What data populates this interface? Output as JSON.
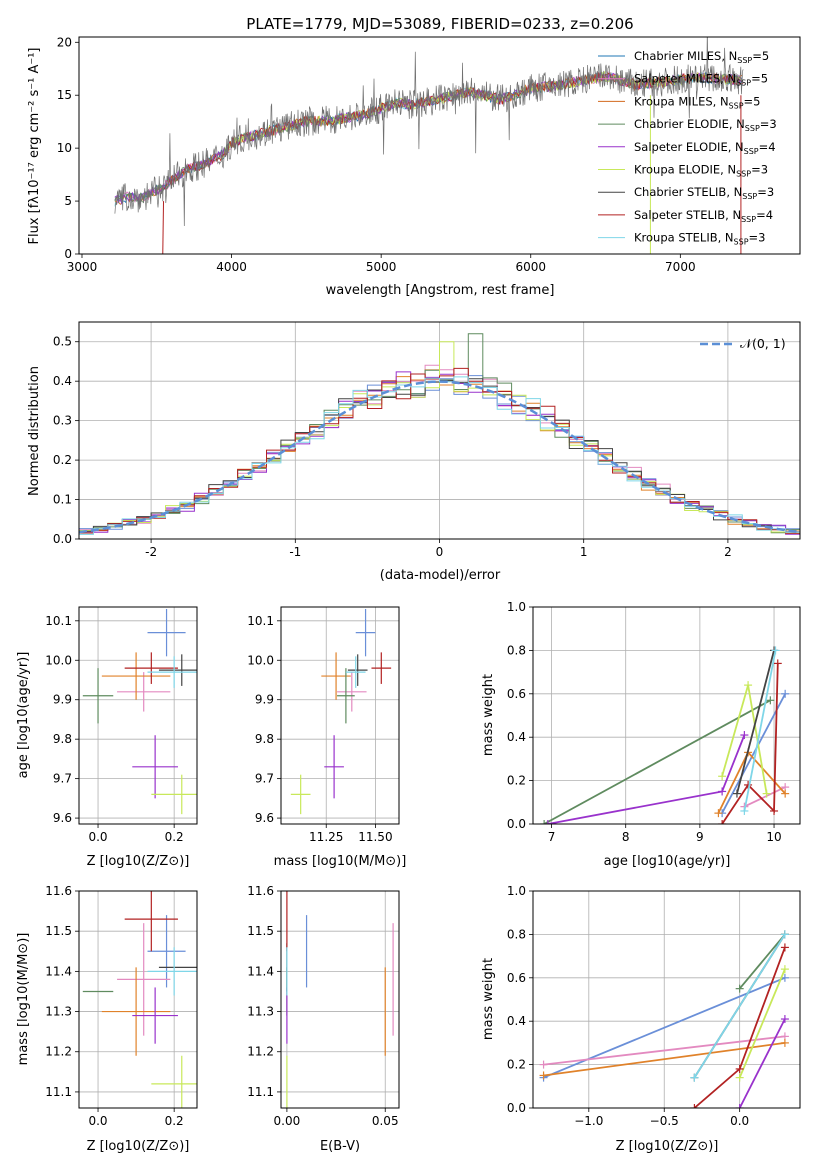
{
  "chart_data": [
    {
      "id": "spectrum",
      "type": "line",
      "title": "PLATE=1779, MJD=53089, FIBERID=0233, z=0.206",
      "xlabel": "wavelength [Angstrom, rest frame]",
      "ylabel": "Flux [fλ10⁻¹⁷ erg cm⁻² s⁻¹ A⁻¹]",
      "xlim": [
        2980,
        7800
      ],
      "ylim": [
        0,
        20.5
      ],
      "xticks": [
        3000,
        4000,
        5000,
        6000,
        7000
      ],
      "yticks": [
        0,
        5,
        10,
        15,
        20
      ],
      "legend_position": "top-right",
      "series": [
        {
          "name": "Chabrier MILES, NSSP=5",
          "color": "#1f77b4"
        },
        {
          "name": "Salpeter MILES, NSSP=5",
          "color": "#e377c2"
        },
        {
          "name": "Kroupa MILES, NSSP=5",
          "color": "#d2691e"
        },
        {
          "name": "Chabrier ELODIE, NSSP=3",
          "color": "#5f8b5f"
        },
        {
          "name": "Salpeter ELODIE, NSSP=4",
          "color": "#9932cc"
        },
        {
          "name": "Kroupa ELODIE, NSSP=3",
          "color": "#c8e85a"
        },
        {
          "name": "Chabrier STELIB, NSSP=3",
          "color": "#444444"
        },
        {
          "name": "Salpeter STELIB, NSSP=4",
          "color": "#b22222"
        },
        {
          "name": "Kroupa STELIB, NSSP=3",
          "color": "#7fd6e8"
        }
      ],
      "continuum": [
        [
          3220,
          5.0
        ],
        [
          3300,
          5.4
        ],
        [
          3400,
          5.3
        ],
        [
          3550,
          6.4
        ],
        [
          3700,
          8.0
        ],
        [
          3850,
          8.7
        ],
        [
          3950,
          9.5
        ],
        [
          4000,
          10.5
        ],
        [
          4100,
          11.0
        ],
        [
          4300,
          11.8
        ],
        [
          4500,
          12.5
        ],
        [
          4700,
          12.7
        ],
        [
          4900,
          13.2
        ],
        [
          5100,
          14.3
        ],
        [
          5200,
          14.1
        ],
        [
          5400,
          14.7
        ],
        [
          5600,
          15.3
        ],
        [
          5800,
          14.6
        ],
        [
          6000,
          15.6
        ],
        [
          6200,
          16.0
        ],
        [
          6500,
          16.8
        ],
        [
          6700,
          16.0
        ],
        [
          6900,
          16.3
        ],
        [
          7100,
          16.7
        ],
        [
          7400,
          16.4
        ]
      ]
    },
    {
      "id": "residuals",
      "type": "histogram",
      "xlabel": "(data-model)/error",
      "ylabel": "Normed distribution",
      "xlim": [
        -2.5,
        2.5
      ],
      "ylim": [
        0,
        0.55
      ],
      "xticks": [
        -2,
        -1,
        0,
        1,
        2
      ],
      "yticks": [
        0.0,
        0.1,
        0.2,
        0.3,
        0.4,
        0.5
      ],
      "grid": true,
      "legend": "𝒩(0, 1)",
      "legend_position": "top-right",
      "bin_width": 0.1
    },
    {
      "id": "age-vs-Z",
      "type": "scatter",
      "xlabel": "Z [log10(Z/Z⊙)]",
      "ylabel": "age [log10(age/yr)]",
      "xlim": [
        -0.05,
        0.26
      ],
      "ylim": [
        9.585,
        10.135
      ],
      "xticks": [
        0.0,
        0.2
      ],
      "yticks": [
        9.6,
        9.7,
        9.8,
        9.9,
        10.0,
        10.1
      ]
    },
    {
      "id": "age-vs-mass",
      "type": "scatter",
      "xlabel": "mass [log10(M/M⊙)]",
      "xlim": [
        11.02,
        11.62
      ],
      "ylim": [
        9.585,
        10.135
      ],
      "xticks": [
        11.25,
        11.5
      ],
      "xticklabels": [
        "11.25",
        "11.50"
      ],
      "yticks": [
        9.6,
        9.7,
        9.8,
        9.9,
        10.0,
        10.1
      ]
    },
    {
      "id": "weight-vs-age",
      "type": "line",
      "xlabel": "age [log10(age/yr)]",
      "ylabel": "mass weight",
      "xlim": [
        6.75,
        10.35
      ],
      "ylim": [
        0,
        1
      ],
      "xticks": [
        7,
        8,
        9,
        10
      ],
      "yticks": [
        0.0,
        0.2,
        0.4,
        0.6,
        0.8,
        1.0
      ]
    },
    {
      "id": "mass-vs-Z",
      "type": "scatter",
      "xlabel": "Z [log10(Z/Z⊙)]",
      "ylabel": "mass [log10(M/M⊙)]",
      "xlim": [
        -0.05,
        0.26
      ],
      "ylim": [
        11.06,
        11.6
      ],
      "xticks": [
        0.0,
        0.2
      ],
      "yticks": [
        11.1,
        11.2,
        11.3,
        11.4,
        11.5,
        11.6
      ]
    },
    {
      "id": "mass-vs-ebv",
      "type": "scatter",
      "xlabel": "E(B-V)",
      "xlim": [
        -0.003,
        0.057
      ],
      "ylim": [
        11.06,
        11.6
      ],
      "xticks": [
        0.0,
        0.05
      ],
      "xticklabels": [
        "0.00",
        "0.05"
      ],
      "yticks": [
        11.1,
        11.2,
        11.3,
        11.4,
        11.5,
        11.6
      ]
    },
    {
      "id": "weight-vs-Z",
      "type": "line",
      "xlabel": "Z [log10(Z/Z⊙)]",
      "ylabel": "mass weight",
      "xlim": [
        -1.37,
        0.4
      ],
      "ylim": [
        0,
        1
      ],
      "xticks": [
        -1.0,
        -0.5,
        0.0
      ],
      "xticklabels": [
        "−1.0",
        "−0.5",
        "0.0"
      ],
      "yticks": [
        0.0,
        0.2,
        0.4,
        0.6,
        0.8,
        1.0
      ]
    }
  ],
  "models": [
    {
      "name": "Chabrier MILES",
      "color": "#6a8fd8",
      "Z": [
        0.18,
        0.1
      ],
      "age": [
        10.07,
        0.06
      ],
      "mass": [
        11.45,
        0.1
      ],
      "ebv": 0.01,
      "m_err": 0.09,
      "sfh_age": [
        [
          9.3,
          0.05
        ],
        [
          10.15,
          0.6
        ]
      ],
      "sfh_Z": [
        [
          -1.3,
          0.14
        ],
        [
          0.3,
          0.6
        ]
      ]
    },
    {
      "name": "Salpeter MILES",
      "color": "#e38ac0",
      "Z": [
        0.12,
        0.14
      ],
      "age": [
        9.92,
        0.05
      ],
      "mass": [
        11.38,
        0.15
      ],
      "ebv": 0.054,
      "m_err": 0.14,
      "sfh_age": [
        [
          9.6,
          0.08
        ],
        [
          10.15,
          0.17
        ]
      ],
      "sfh_Z": [
        [
          -1.3,
          0.2
        ],
        [
          0.3,
          0.33
        ]
      ]
    },
    {
      "name": "Kroupa MILES",
      "color": "#e0822a",
      "Z": [
        0.1,
        0.18
      ],
      "age": [
        9.96,
        0.06
      ],
      "mass": [
        11.3,
        0.15
      ],
      "ebv": 0.05,
      "m_err": 0.11,
      "sfh_age": [
        [
          9.25,
          0.05
        ],
        [
          9.65,
          0.33
        ],
        [
          10.15,
          0.14
        ]
      ],
      "sfh_Z": [
        [
          -1.3,
          0.15
        ],
        [
          0.3,
          0.3
        ]
      ]
    },
    {
      "name": "Chabrier ELODIE",
      "color": "#5f8b5f",
      "Z": [
        0.0,
        0.08
      ],
      "age": [
        9.91,
        0.07
      ],
      "mass": [
        11.35,
        0.09
      ],
      "ebv": 0.0,
      "m_err": 0.0,
      "sfh_age": [
        [
          6.9,
          0.0
        ],
        [
          9.95,
          0.57
        ]
      ],
      "sfh_Z": [
        [
          0.0,
          0.55
        ],
        [
          0.3,
          0.8
        ]
      ]
    },
    {
      "name": "Salpeter ELODIE",
      "color": "#9932cc",
      "Z": [
        0.15,
        0.12
      ],
      "age": [
        9.73,
        0.08
      ],
      "mass": [
        11.29,
        0.1
      ],
      "ebv": 0.0,
      "m_err": 0.07,
      "sfh_age": [
        [
          6.95,
          0.0
        ],
        [
          9.3,
          0.15
        ],
        [
          9.6,
          0.41
        ]
      ],
      "sfh_Z": [
        [
          0.0,
          0.0
        ],
        [
          0.3,
          0.41
        ]
      ]
    },
    {
      "name": "Kroupa ELODIE",
      "color": "#c8e85a",
      "Z": [
        0.22,
        0.16
      ],
      "age": [
        9.66,
        0.05
      ],
      "mass": [
        11.12,
        0.1
      ],
      "ebv": 0.0,
      "m_err": 0.07,
      "sfh_age": [
        [
          9.3,
          0.22
        ],
        [
          9.65,
          0.64
        ],
        [
          9.9,
          0.14
        ]
      ],
      "sfh_Z": [
        [
          0.0,
          0.14
        ],
        [
          0.3,
          0.64
        ]
      ]
    },
    {
      "name": "Chabrier STELIB",
      "color": "#444444",
      "Z": [
        0.22,
        0.12
      ],
      "age": [
        9.975,
        0.04
      ],
      "mass": [
        11.41,
        0.1
      ],
      "ebv": 0.0,
      "m_err": 0.0,
      "sfh_age": [
        [
          9.5,
          0.14
        ],
        [
          10.0,
          0.8
        ]
      ],
      "sfh_Z": [
        [
          -0.3,
          0.14
        ],
        [
          0.3,
          0.8
        ]
      ]
    },
    {
      "name": "Salpeter STELIB",
      "color": "#b22222",
      "Z": [
        0.14,
        0.14
      ],
      "age": [
        9.98,
        0.04
      ],
      "mass": [
        11.53,
        0.1
      ],
      "ebv": 0.0,
      "m_err": 0.08,
      "sfh_age": [
        [
          9.3,
          0.0
        ],
        [
          9.65,
          0.18
        ],
        [
          10.0,
          0.06
        ],
        [
          10.05,
          0.74
        ]
      ],
      "sfh_Z": [
        [
          -0.3,
          0.0
        ],
        [
          0.0,
          0.18
        ],
        [
          0.3,
          0.74
        ]
      ]
    },
    {
      "name": "Kroupa STELIB",
      "color": "#7fd6e8",
      "Z": [
        0.2,
        0.14
      ],
      "age": [
        9.97,
        0.04
      ],
      "mass": [
        11.4,
        0.1
      ],
      "ebv": 0.0,
      "m_err": 0.06,
      "sfh_age": [
        [
          9.6,
          0.06
        ],
        [
          10.02,
          0.8
        ]
      ],
      "sfh_Z": [
        [
          -0.3,
          0.14
        ],
        [
          0.3,
          0.8
        ]
      ]
    }
  ]
}
